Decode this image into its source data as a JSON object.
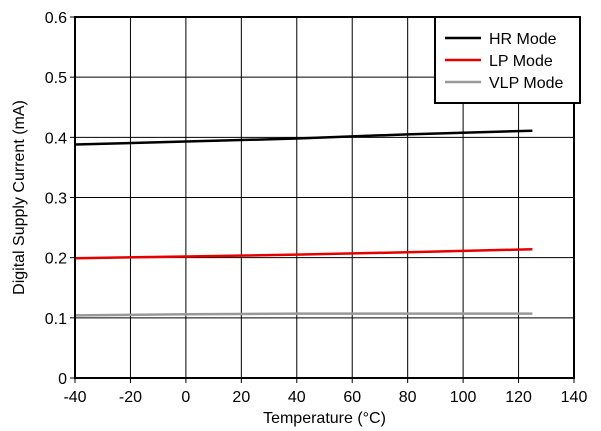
{
  "chart_data": {
    "type": "line",
    "xlabel": "Temperature (°C)",
    "ylabel": "Digital Supply Current (mA)",
    "xlim": [
      -40,
      140
    ],
    "ylim": [
      0,
      0.6
    ],
    "x_ticks": [
      -40,
      -20,
      0,
      20,
      40,
      60,
      80,
      100,
      120,
      140
    ],
    "y_ticks": [
      0,
      0.1,
      0.2,
      0.3,
      0.4,
      0.5,
      0.6
    ],
    "grid": true,
    "legend_position": "top-right",
    "series": [
      {
        "name": "HR Mode",
        "color": "#000000",
        "x": [
          -40,
          0,
          40,
          80,
          125
        ],
        "y": [
          0.388,
          0.393,
          0.398,
          0.405,
          0.411
        ]
      },
      {
        "name": "LP Mode",
        "color": "#e60000",
        "x": [
          -40,
          0,
          40,
          80,
          125
        ],
        "y": [
          0.199,
          0.202,
          0.205,
          0.209,
          0.214
        ]
      },
      {
        "name": "VLP Mode",
        "color": "#999999",
        "x": [
          -40,
          0,
          40,
          80,
          125
        ],
        "y": [
          0.104,
          0.106,
          0.107,
          0.107,
          0.107
        ]
      }
    ]
  }
}
